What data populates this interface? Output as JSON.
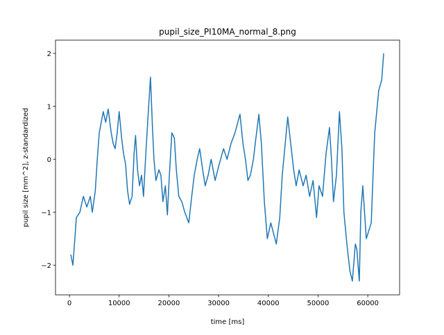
{
  "chart_data": {
    "type": "line",
    "title": "pupil_size_PI10MA_normal_8.png",
    "xlabel": "time [ms]",
    "ylabel": "pupil size [mm^2], z-standardized",
    "color": "#1f77b4",
    "x": [
      280,
      700,
      1400,
      2100,
      2800,
      3500,
      4200,
      4600,
      5200,
      5600,
      6000,
      6400,
      6800,
      7300,
      7800,
      8400,
      8800,
      9200,
      9600,
      10000,
      10500,
      10900,
      11300,
      11700,
      12100,
      12600,
      13000,
      13300,
      13700,
      14100,
      14500,
      14900,
      15300,
      15800,
      16300,
      16700,
      17000,
      17400,
      18000,
      18400,
      18800,
      19300,
      19700,
      20100,
      20600,
      21100,
      21500,
      22000,
      22600,
      23200,
      24000,
      24600,
      25100,
      25700,
      26200,
      26800,
      27300,
      27900,
      28500,
      29300,
      30100,
      31000,
      31700,
      32500,
      33300,
      34300,
      34900,
      35400,
      35900,
      36400,
      37000,
      37500,
      38100,
      38600,
      39200,
      39800,
      40500,
      41600,
      42300,
      42800,
      43400,
      43900,
      44500,
      45100,
      45600,
      46200,
      47000,
      47600,
      48300,
      49000,
      49700,
      50200,
      50900,
      51600,
      52300,
      52700,
      53100,
      53700,
      54300,
      54800,
      55200,
      55800,
      56400,
      56900,
      57500,
      57800,
      58300,
      58600,
      59000,
      59700,
      60700,
      61100,
      61400,
      61800,
      62200,
      62800,
      63200
    ],
    "values": [
      -1.8,
      -2.0,
      -1.1,
      -1.0,
      -0.7,
      -0.9,
      -0.7,
      -1.0,
      -0.6,
      0.0,
      0.5,
      0.7,
      0.9,
      0.7,
      0.95,
      0.5,
      0.3,
      0.2,
      0.5,
      0.9,
      0.4,
      0.1,
      -0.1,
      -0.6,
      -0.85,
      -0.7,
      0.1,
      0.45,
      -0.2,
      -0.5,
      -0.3,
      -0.7,
      0.0,
      0.8,
      1.55,
      0.6,
      0.0,
      -0.4,
      -0.2,
      -0.3,
      -0.8,
      -0.5,
      -1.05,
      -0.3,
      0.5,
      0.4,
      -0.2,
      -0.7,
      -0.8,
      -1.0,
      -1.2,
      -0.7,
      -0.3,
      0.0,
      0.2,
      -0.2,
      -0.5,
      -0.3,
      0.0,
      -0.4,
      -0.1,
      0.2,
      0.0,
      0.3,
      0.5,
      0.85,
      0.3,
      0.0,
      -0.4,
      -0.3,
      0.0,
      0.4,
      0.85,
      0.3,
      -0.8,
      -1.5,
      -1.2,
      -1.6,
      -1.1,
      -0.3,
      0.3,
      0.8,
      0.3,
      -0.2,
      -0.5,
      -0.2,
      -0.5,
      -0.3,
      -0.7,
      -0.4,
      -1.1,
      -0.5,
      -0.7,
      0.1,
      0.6,
      0.0,
      -0.8,
      -0.3,
      0.9,
      0.2,
      -1.0,
      -1.6,
      -2.1,
      -2.3,
      -1.6,
      -1.7,
      -2.3,
      -1.0,
      -0.5,
      -1.5,
      -1.2,
      -0.2,
      0.5,
      0.9,
      1.3,
      1.5,
      2.0
    ],
    "xlim": [
      -2800,
      66400
    ],
    "ylim": [
      -2.56,
      2.25
    ],
    "xticks": [
      0,
      10000,
      20000,
      30000,
      40000,
      50000,
      60000
    ],
    "yticks": [
      {
        "value": -2,
        "label": "−2"
      },
      {
        "value": -1,
        "label": "−1"
      },
      0,
      1,
      2
    ]
  }
}
